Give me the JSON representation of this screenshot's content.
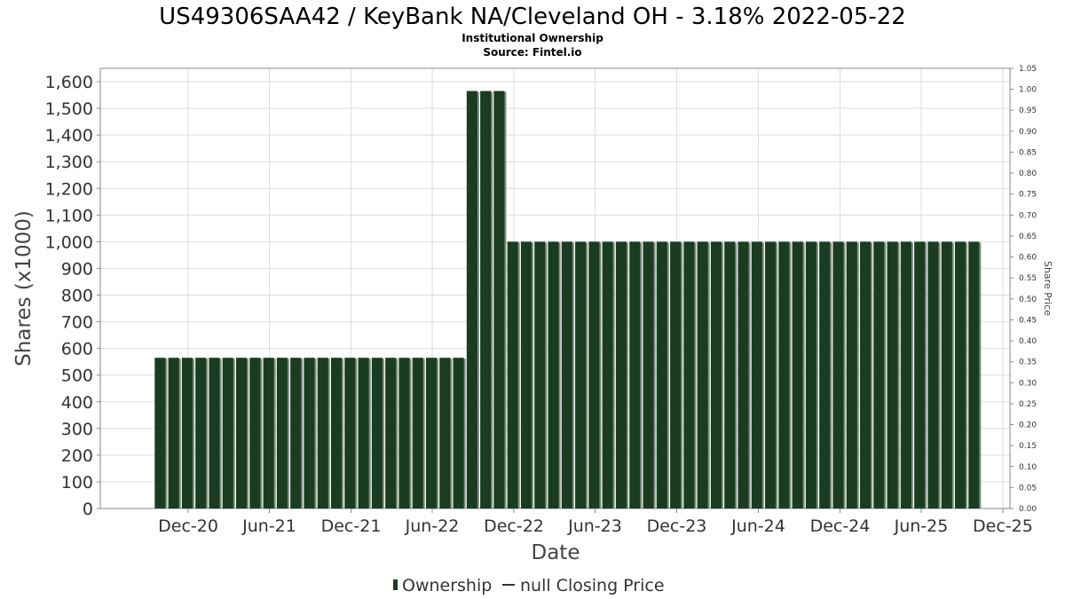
{
  "title": "US49306SAA42 / KeyBank NA/Cleveland OH - 3.18% 2022-05-22",
  "subtitle": "Institutional Ownership",
  "source": "Source: Fintel.io",
  "legend": {
    "ownership": "Ownership",
    "price": "null Closing Price"
  },
  "colors": {
    "bar": "#1a3d21",
    "bar_shadow": "#7f8c80",
    "grid": "#dddddd",
    "plot_border": "#888888"
  },
  "chart_data": {
    "type": "bar",
    "xlabel": "Date",
    "ylabel": "Shares (x1000)",
    "y2label": "Share Price",
    "ylim": [
      0,
      1650
    ],
    "y2lim": [
      0,
      1.05
    ],
    "y_ticks": [
      "0",
      "100",
      "200",
      "300",
      "400",
      "500",
      "600",
      "700",
      "800",
      "900",
      "1,000",
      "1,100",
      "1,200",
      "1,300",
      "1,400",
      "1,500",
      "1,600"
    ],
    "y2_ticks": [
      "0.00",
      "0.05",
      "0.10",
      "0.15",
      "0.20",
      "0.25",
      "0.30",
      "0.35",
      "0.40",
      "0.45",
      "0.50",
      "0.55",
      "0.60",
      "0.65",
      "0.70",
      "0.75",
      "0.80",
      "0.85",
      "0.90",
      "0.95",
      "1.00",
      "1.05"
    ],
    "x_ticks": [
      "Dec-20",
      "Jun-21",
      "Dec-21",
      "Jun-22",
      "Dec-22",
      "Jun-23",
      "Dec-23",
      "Jun-24",
      "Dec-24",
      "Jun-25",
      "Dec-25"
    ],
    "xlim": [
      "2020-06-01",
      "2025-12-31"
    ],
    "grid": true,
    "legend_position": "bottom-center",
    "series": [
      {
        "name": "Ownership",
        "start": "2020-10-01",
        "step_days": 30.4,
        "values": [
          565,
          565,
          565,
          565,
          565,
          565,
          565,
          565,
          565,
          565,
          565,
          565,
          565,
          565,
          565,
          565,
          565,
          565,
          565,
          565,
          565,
          565,
          565,
          1565,
          1565,
          1565,
          1000,
          1000,
          1000,
          1000,
          1000,
          1000,
          1000,
          1000,
          1000,
          1000,
          1000,
          1000,
          1000,
          1000,
          1000,
          1000,
          1000,
          1000,
          1000,
          1000,
          1000,
          1000,
          1000,
          1000,
          1000,
          1000,
          1000,
          1000,
          1000,
          1000,
          1000,
          1000,
          1000,
          1000,
          1000
        ]
      }
    ]
  }
}
